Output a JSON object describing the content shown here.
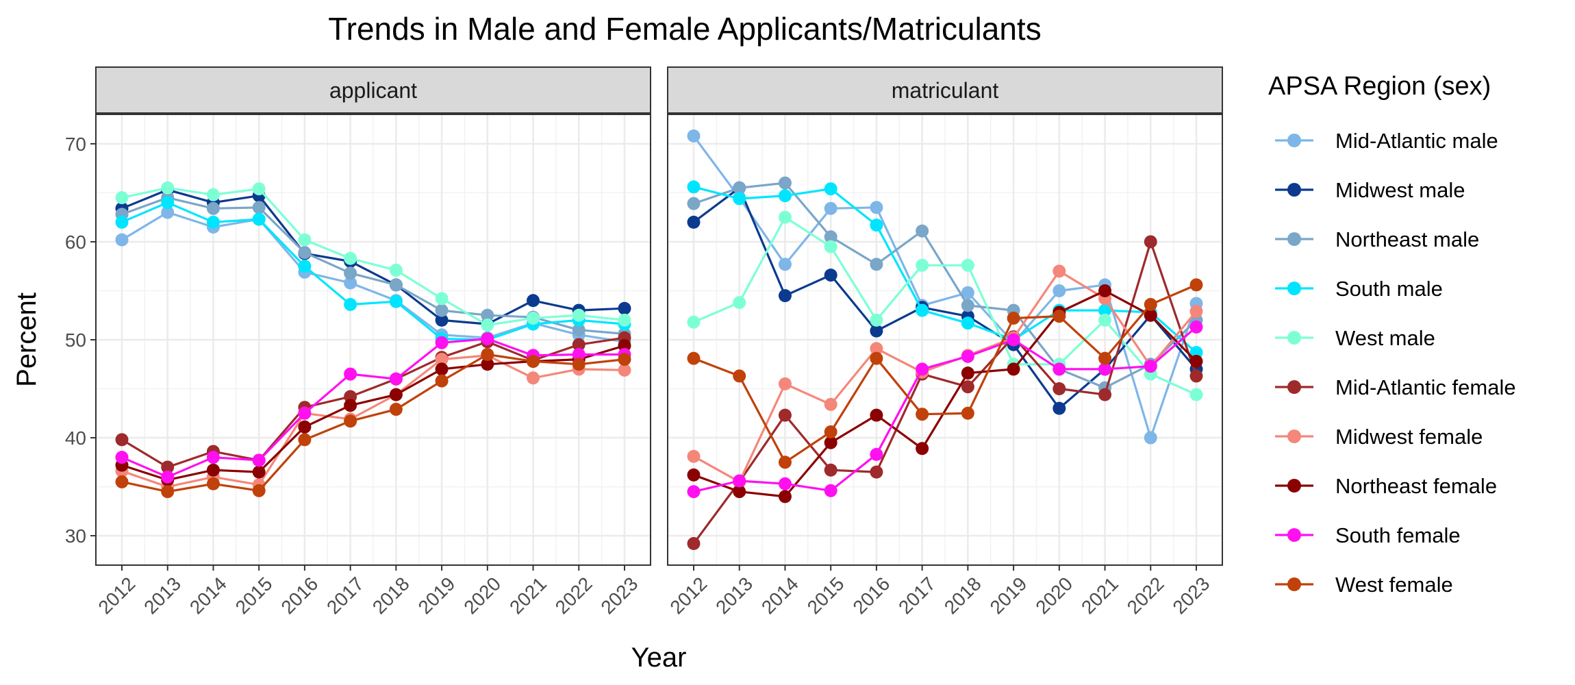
{
  "chart_data": {
    "type": "line",
    "title": "Trends in Male and Female Applicants/Matriculants",
    "xlabel": "Year",
    "ylabel": "Percent",
    "x": [
      2012,
      2013,
      2014,
      2015,
      2016,
      2017,
      2018,
      2019,
      2020,
      2021,
      2022,
      2023
    ],
    "x_tick_labels": [
      "2012",
      "2013",
      "2014",
      "2015",
      "2016",
      "2017",
      "2018",
      "2019",
      "2020",
      "2021",
      "2022",
      "2023"
    ],
    "ylim": [
      27,
      73
    ],
    "y_ticks": [
      30,
      40,
      50,
      60,
      70
    ],
    "y_tick_labels": [
      "30",
      "40",
      "50",
      "60",
      "70"
    ],
    "grid": true,
    "legend_title": "APSA Region (sex)",
    "legend_position": "right",
    "panels": [
      {
        "label": "applicant",
        "series": [
          {
            "name": "Mid-Atlantic male",
            "color": "#7EB6E8",
            "values": [
              60.2,
              63.0,
              61.5,
              62.3,
              56.9,
              55.8,
              54.0,
              50.5,
              50.2,
              51.7,
              50.5,
              49.8
            ]
          },
          {
            "name": "Midwest male",
            "color": "#0B3A8F",
            "values": [
              63.4,
              65.3,
              64.0,
              64.7,
              58.8,
              58.0,
              55.6,
              52.0,
              51.6,
              54.0,
              53.0,
              53.2
            ]
          },
          {
            "name": "Northeast male",
            "color": "#7AA6C8",
            "values": [
              62.8,
              64.5,
              63.4,
              63.5,
              58.9,
              56.8,
              55.6,
              53.0,
              52.5,
              52.3,
              51.0,
              50.6
            ]
          },
          {
            "name": "South male",
            "color": "#00E5FF",
            "values": [
              62.0,
              64.0,
              62.0,
              62.3,
              57.5,
              53.6,
              53.9,
              50.1,
              50.0,
              51.6,
              52.0,
              51.6
            ]
          },
          {
            "name": "West male",
            "color": "#7DFFD6",
            "values": [
              64.5,
              65.5,
              64.8,
              65.4,
              60.2,
              58.3,
              57.1,
              54.2,
              51.5,
              52.2,
              52.5,
              52.0
            ]
          },
          {
            "name": "Mid-Atlantic female",
            "color": "#9E2A2B",
            "values": [
              39.8,
              37.0,
              38.6,
              37.7,
              43.1,
              44.2,
              46.0,
              48.2,
              49.8,
              47.9,
              49.5,
              50.2
            ]
          },
          {
            "name": "Midwest female",
            "color": "#F4877A",
            "values": [
              36.6,
              35.0,
              36.0,
              35.2,
              42.5,
              41.9,
              44.4,
              48.0,
              48.4,
              46.1,
              47.0,
              46.9
            ]
          },
          {
            "name": "Northeast female",
            "color": "#8B0000",
            "values": [
              37.2,
              35.7,
              36.7,
              36.5,
              41.1,
              43.3,
              44.4,
              47.0,
              47.5,
              47.8,
              48.0,
              49.4
            ]
          },
          {
            "name": "South female",
            "color": "#FF10F0",
            "values": [
              38.0,
              36.0,
              38.0,
              37.7,
              42.5,
              46.5,
              46.0,
              49.7,
              50.1,
              48.4,
              48.5,
              48.5
            ]
          },
          {
            "name": "West female",
            "color": "#C0420A",
            "values": [
              35.5,
              34.5,
              35.3,
              34.6,
              39.8,
              41.7,
              42.9,
              45.8,
              48.5,
              47.8,
              47.5,
              48.0
            ]
          }
        ]
      },
      {
        "label": "matriculant",
        "series": [
          {
            "name": "Mid-Atlantic male",
            "color": "#7EB6E8",
            "values": [
              70.8,
              64.5,
              57.7,
              63.4,
              63.5,
              53.5,
              54.8,
              49.7,
              55.0,
              55.6,
              40.0,
              53.7
            ]
          },
          {
            "name": "Midwest male",
            "color": "#0B3A8F",
            "values": [
              62.0,
              65.5,
              54.5,
              56.6,
              50.9,
              53.3,
              52.4,
              49.5,
              43.0,
              47.0,
              52.5,
              47.0
            ]
          },
          {
            "name": "Northeast male",
            "color": "#7AA6C8",
            "values": [
              63.9,
              65.5,
              66.0,
              60.5,
              57.7,
              61.1,
              53.5,
              53.0,
              47.0,
              45.1,
              47.5,
              52.0
            ]
          },
          {
            "name": "South male",
            "color": "#00E5FF",
            "values": [
              65.6,
              64.4,
              64.7,
              65.4,
              61.7,
              53.0,
              51.7,
              50.0,
              53.0,
              53.0,
              52.8,
              48.7
            ]
          },
          {
            "name": "West male",
            "color": "#7DFFD6",
            "values": [
              51.8,
              53.8,
              62.5,
              59.5,
              52.0,
              57.6,
              57.6,
              47.5,
              47.5,
              52.0,
              46.5,
              44.4
            ]
          },
          {
            "name": "Mid-Atlantic female",
            "color": "#9E2A2B",
            "values": [
              29.2,
              35.5,
              42.3,
              36.7,
              36.5,
              46.5,
              45.2,
              50.3,
              45.0,
              44.4,
              60.0,
              46.3
            ]
          },
          {
            "name": "Midwest female",
            "color": "#F4877A",
            "values": [
              38.1,
              35.5,
              45.5,
              43.4,
              49.1,
              46.7,
              48.4,
              50.2,
              57.0,
              54.2,
              47.3,
              52.9
            ]
          },
          {
            "name": "Northeast female",
            "color": "#8B0000",
            "values": [
              36.2,
              34.5,
              34.0,
              39.5,
              42.3,
              38.9,
              46.6,
              47.0,
              52.8,
              55.0,
              52.5,
              47.8
            ]
          },
          {
            "name": "South female",
            "color": "#FF10F0",
            "values": [
              34.5,
              35.6,
              35.3,
              34.6,
              38.3,
              47.0,
              48.3,
              50.0,
              47.0,
              47.0,
              47.3,
              51.3
            ]
          },
          {
            "name": "West female",
            "color": "#C0420A",
            "values": [
              48.1,
              46.3,
              37.5,
              40.6,
              48.1,
              42.4,
              42.5,
              52.2,
              52.4,
              48.1,
              53.6,
              55.6
            ]
          }
        ]
      }
    ]
  }
}
